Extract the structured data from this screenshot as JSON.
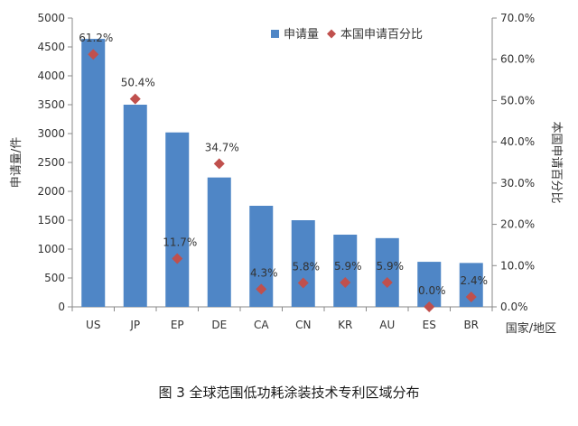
{
  "chart_data": {
    "type": "bar",
    "categories": [
      "US",
      "JP",
      "EP",
      "DE",
      "CA",
      "CN",
      "KR",
      "AU",
      "ES",
      "BR"
    ],
    "series": [
      {
        "name": "申请量",
        "type": "bar",
        "axis": "left",
        "color": "#4f86c6",
        "values": [
          4640,
          3500,
          3020,
          2240,
          1750,
          1500,
          1250,
          1190,
          780,
          760
        ]
      },
      {
        "name": "本国申请百分比",
        "type": "scatter",
        "marker": "diamond",
        "axis": "right",
        "color": "#c0504d",
        "values": [
          61.2,
          50.4,
          11.7,
          34.7,
          4.3,
          5.8,
          5.9,
          5.9,
          0.0,
          2.4
        ],
        "labels": [
          "61.2%",
          "50.4%",
          "11.7%",
          "34.7%",
          "4.3%",
          "5.8%",
          "5.9%",
          "5.9%",
          "0.0%",
          "2.4%"
        ]
      }
    ],
    "ylabel_left": "申请量/件",
    "ylabel_right": "本国申请百分比",
    "xlabel": "国家/地区",
    "ylim_left": [
      0,
      5000
    ],
    "yticks_left": [
      "0",
      "500",
      "1000",
      "1500",
      "2000",
      "2500",
      "3000",
      "3500",
      "4000",
      "4500",
      "5000"
    ],
    "ylim_right": [
      0,
      70
    ],
    "yticks_right": [
      "0.0%",
      "10.0%",
      "20.0%",
      "30.0%",
      "40.0%",
      "50.0%",
      "60.0%",
      "70.0%"
    ],
    "legend_position": "top-right",
    "grid": false
  },
  "caption": "图 3  全球范围低功耗涂装技术专利区域分布"
}
